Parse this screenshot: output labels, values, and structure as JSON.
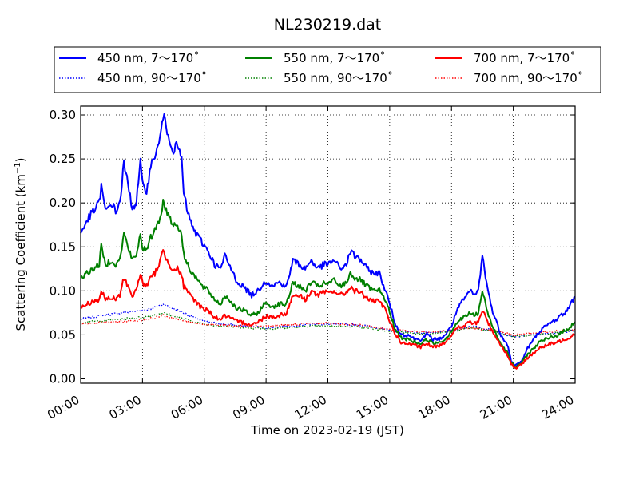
{
  "chart_data": {
    "type": "line",
    "title": "NL230219.dat",
    "xlabel": "Time on 2023-02-19 (JST)",
    "ylabel_main": "Scattering Coefficient (km",
    "ylabel_sup": "−1",
    "ylabel_close": ")",
    "xlim": [
      0,
      24
    ],
    "ylim": [
      -0.005,
      0.31
    ],
    "xticks": [
      0,
      3,
      6,
      9,
      12,
      15,
      18,
      21,
      24
    ],
    "xtick_labels": [
      "00:00",
      "03:00",
      "06:00",
      "09:00",
      "12:00",
      "15:00",
      "18:00",
      "21:00",
      "24:00"
    ],
    "yticks": [
      0.0,
      0.05,
      0.1,
      0.15,
      0.2,
      0.25,
      0.3
    ],
    "ytick_labels": [
      "0.00",
      "0.05",
      "0.10",
      "0.15",
      "0.20",
      "0.25",
      "0.30"
    ],
    "grid": true,
    "legend_position": "top",
    "series": [
      {
        "name": "450 nm, 7～170˚",
        "color": "#0000ff",
        "style": "solid",
        "x": [
          0,
          0.3,
          0.6,
          0.9,
          1.0,
          1.2,
          1.5,
          1.7,
          1.9,
          2.1,
          2.3,
          2.5,
          2.7,
          2.9,
          3.0,
          3.2,
          3.4,
          3.6,
          3.8,
          4.0,
          4.1,
          4.3,
          4.5,
          4.7,
          4.9,
          5.0,
          5.3,
          5.6,
          5.9,
          6.2,
          6.5,
          6.8,
          7.0,
          7.2,
          7.4,
          7.6,
          7.9,
          8.3,
          8.6,
          8.9,
          9.1,
          9.3,
          9.6,
          10.0,
          10.3,
          10.6,
          10.9,
          11.2,
          11.5,
          11.8,
          12.0,
          12.3,
          12.6,
          12.9,
          13.1,
          13.3,
          13.6,
          13.9,
          14.2,
          14.5,
          14.8,
          15.0,
          15.3,
          15.6,
          15.9,
          16.2,
          16.5,
          16.8,
          17.1,
          17.4,
          17.7,
          18.0,
          18.3,
          18.6,
          18.9,
          19.1,
          19.3,
          19.5,
          19.7,
          19.9,
          20.1,
          20.4,
          20.7,
          20.9,
          21.1,
          21.4,
          21.7,
          22.0,
          22.3,
          22.6,
          22.9,
          23.2,
          23.5,
          23.8,
          24.0
        ],
        "y": [
          0.165,
          0.18,
          0.19,
          0.2,
          0.22,
          0.19,
          0.2,
          0.19,
          0.2,
          0.245,
          0.22,
          0.195,
          0.2,
          0.245,
          0.22,
          0.215,
          0.24,
          0.255,
          0.265,
          0.3,
          0.29,
          0.275,
          0.26,
          0.265,
          0.25,
          0.21,
          0.18,
          0.165,
          0.155,
          0.145,
          0.13,
          0.125,
          0.14,
          0.13,
          0.12,
          0.11,
          0.105,
          0.095,
          0.1,
          0.11,
          0.11,
          0.105,
          0.11,
          0.105,
          0.135,
          0.13,
          0.125,
          0.135,
          0.125,
          0.13,
          0.13,
          0.135,
          0.125,
          0.13,
          0.145,
          0.14,
          0.135,
          0.125,
          0.12,
          0.12,
          0.1,
          0.085,
          0.06,
          0.05,
          0.05,
          0.045,
          0.045,
          0.05,
          0.045,
          0.045,
          0.05,
          0.06,
          0.08,
          0.09,
          0.1,
          0.095,
          0.1,
          0.14,
          0.11,
          0.085,
          0.07,
          0.05,
          0.04,
          0.02,
          0.015,
          0.02,
          0.035,
          0.045,
          0.055,
          0.06,
          0.065,
          0.07,
          0.075,
          0.085,
          0.095
        ]
      },
      {
        "name": "450 nm, 90～170˚",
        "color": "#0000ff",
        "style": "dotted",
        "x": [
          0,
          1,
          2,
          3,
          3.5,
          4,
          4.3,
          5,
          6,
          7,
          8,
          9,
          10,
          11,
          12,
          13,
          14,
          15,
          16,
          17,
          18,
          19,
          20,
          21,
          22,
          23,
          24
        ],
        "y": [
          0.068,
          0.072,
          0.075,
          0.078,
          0.08,
          0.085,
          0.082,
          0.075,
          0.065,
          0.062,
          0.06,
          0.058,
          0.06,
          0.062,
          0.062,
          0.062,
          0.06,
          0.055,
          0.053,
          0.052,
          0.055,
          0.06,
          0.055,
          0.048,
          0.05,
          0.052,
          0.055
        ]
      },
      {
        "name": "550 nm, 7～170˚",
        "color": "#008000",
        "style": "solid",
        "x": [
          0,
          0.3,
          0.6,
          0.9,
          1.0,
          1.2,
          1.5,
          1.7,
          1.9,
          2.1,
          2.3,
          2.5,
          2.7,
          2.9,
          3.0,
          3.2,
          3.4,
          3.6,
          3.8,
          4.0,
          4.1,
          4.3,
          4.5,
          4.7,
          4.9,
          5.0,
          5.3,
          5.6,
          5.9,
          6.2,
          6.5,
          6.8,
          7.0,
          7.2,
          7.4,
          7.6,
          7.9,
          8.3,
          8.6,
          8.9,
          9.1,
          9.3,
          9.6,
          10.0,
          10.3,
          10.6,
          10.9,
          11.2,
          11.5,
          11.8,
          12.0,
          12.3,
          12.6,
          12.9,
          13.1,
          13.3,
          13.6,
          13.9,
          14.2,
          14.5,
          14.8,
          15.0,
          15.3,
          15.6,
          15.9,
          16.2,
          16.5,
          16.8,
          17.1,
          17.4,
          17.7,
          18.0,
          18.3,
          18.6,
          18.9,
          19.1,
          19.3,
          19.5,
          19.7,
          19.9,
          20.1,
          20.4,
          20.7,
          20.9,
          21.1,
          21.4,
          21.7,
          22.0,
          22.3,
          22.6,
          22.9,
          23.2,
          23.5,
          23.8,
          24.0
        ],
        "y": [
          0.115,
          0.12,
          0.125,
          0.13,
          0.15,
          0.13,
          0.135,
          0.13,
          0.135,
          0.165,
          0.15,
          0.135,
          0.14,
          0.165,
          0.15,
          0.145,
          0.16,
          0.17,
          0.18,
          0.2,
          0.195,
          0.185,
          0.175,
          0.175,
          0.165,
          0.14,
          0.125,
          0.115,
          0.105,
          0.1,
          0.09,
          0.085,
          0.095,
          0.09,
          0.085,
          0.08,
          0.078,
          0.072,
          0.075,
          0.085,
          0.085,
          0.082,
          0.085,
          0.085,
          0.11,
          0.105,
          0.1,
          0.11,
          0.105,
          0.108,
          0.108,
          0.112,
          0.105,
          0.11,
          0.12,
          0.115,
          0.112,
          0.105,
          0.1,
          0.1,
          0.09,
          0.075,
          0.055,
          0.045,
          0.045,
          0.042,
          0.04,
          0.045,
          0.04,
          0.042,
          0.045,
          0.055,
          0.065,
          0.07,
          0.075,
          0.072,
          0.075,
          0.1,
          0.08,
          0.065,
          0.055,
          0.04,
          0.03,
          0.018,
          0.013,
          0.018,
          0.028,
          0.035,
          0.042,
          0.045,
          0.048,
          0.05,
          0.055,
          0.06,
          0.065
        ]
      },
      {
        "name": "550 nm, 90～170˚",
        "color": "#008000",
        "style": "dotted",
        "x": [
          0,
          1,
          2,
          3,
          3.5,
          4,
          4.3,
          5,
          6,
          7,
          8,
          9,
          10,
          11,
          12,
          13,
          14,
          15,
          16,
          17,
          18,
          19,
          20,
          21,
          22,
          23,
          24
        ],
        "y": [
          0.064,
          0.066,
          0.068,
          0.07,
          0.072,
          0.075,
          0.073,
          0.068,
          0.062,
          0.06,
          0.058,
          0.057,
          0.058,
          0.06,
          0.06,
          0.06,
          0.058,
          0.054,
          0.052,
          0.051,
          0.054,
          0.058,
          0.054,
          0.048,
          0.05,
          0.052,
          0.055
        ]
      },
      {
        "name": "700 nm, 7～170˚",
        "color": "#ff0000",
        "style": "solid",
        "x": [
          0,
          0.3,
          0.6,
          0.9,
          1.0,
          1.2,
          1.5,
          1.7,
          1.9,
          2.1,
          2.3,
          2.5,
          2.7,
          2.9,
          3.0,
          3.2,
          3.4,
          3.6,
          3.8,
          4.0,
          4.1,
          4.3,
          4.5,
          4.7,
          4.9,
          5.0,
          5.3,
          5.6,
          5.9,
          6.2,
          6.5,
          6.8,
          7.0,
          7.2,
          7.4,
          7.6,
          7.9,
          8.3,
          8.6,
          8.9,
          9.1,
          9.3,
          9.6,
          10.0,
          10.3,
          10.6,
          10.9,
          11.2,
          11.5,
          11.8,
          12.0,
          12.3,
          12.6,
          12.9,
          13.1,
          13.3,
          13.6,
          13.9,
          14.2,
          14.5,
          14.8,
          15.0,
          15.3,
          15.6,
          15.9,
          16.2,
          16.5,
          16.8,
          17.1,
          17.4,
          17.7,
          18.0,
          18.3,
          18.6,
          18.9,
          19.1,
          19.3,
          19.5,
          19.7,
          19.9,
          20.1,
          20.4,
          20.7,
          20.9,
          21.1,
          21.4,
          21.7,
          22.0,
          22.3,
          22.6,
          22.9,
          23.2,
          23.5,
          23.8,
          24.0
        ],
        "y": [
          0.08,
          0.085,
          0.088,
          0.09,
          0.1,
          0.09,
          0.092,
          0.09,
          0.095,
          0.115,
          0.105,
          0.095,
          0.1,
          0.12,
          0.11,
          0.105,
          0.115,
          0.12,
          0.13,
          0.145,
          0.14,
          0.13,
          0.125,
          0.125,
          0.118,
          0.105,
          0.095,
          0.088,
          0.08,
          0.078,
          0.07,
          0.068,
          0.072,
          0.07,
          0.067,
          0.065,
          0.064,
          0.062,
          0.064,
          0.07,
          0.072,
          0.07,
          0.072,
          0.075,
          0.095,
          0.095,
          0.09,
          0.1,
          0.095,
          0.098,
          0.098,
          0.1,
          0.095,
          0.098,
          0.105,
          0.1,
          0.098,
          0.092,
          0.088,
          0.088,
          0.078,
          0.065,
          0.05,
          0.04,
          0.04,
          0.038,
          0.036,
          0.04,
          0.036,
          0.038,
          0.042,
          0.05,
          0.058,
          0.06,
          0.065,
          0.062,
          0.065,
          0.078,
          0.068,
          0.058,
          0.05,
          0.038,
          0.028,
          0.017,
          0.012,
          0.016,
          0.024,
          0.03,
          0.035,
          0.038,
          0.04,
          0.042,
          0.045,
          0.048,
          0.052
        ]
      },
      {
        "name": "700 nm, 90～170˚",
        "color": "#ff0000",
        "style": "dotted",
        "x": [
          0,
          1,
          2,
          3,
          3.5,
          4,
          4.3,
          5,
          6,
          7,
          8,
          9,
          10,
          11,
          12,
          13,
          14,
          15,
          16,
          17,
          18,
          19,
          20,
          21,
          22,
          23,
          24
        ],
        "y": [
          0.062,
          0.064,
          0.065,
          0.067,
          0.069,
          0.072,
          0.07,
          0.066,
          0.062,
          0.061,
          0.06,
          0.06,
          0.061,
          0.063,
          0.063,
          0.062,
          0.06,
          0.056,
          0.054,
          0.053,
          0.055,
          0.058,
          0.055,
          0.05,
          0.052,
          0.054,
          0.056
        ]
      }
    ]
  }
}
